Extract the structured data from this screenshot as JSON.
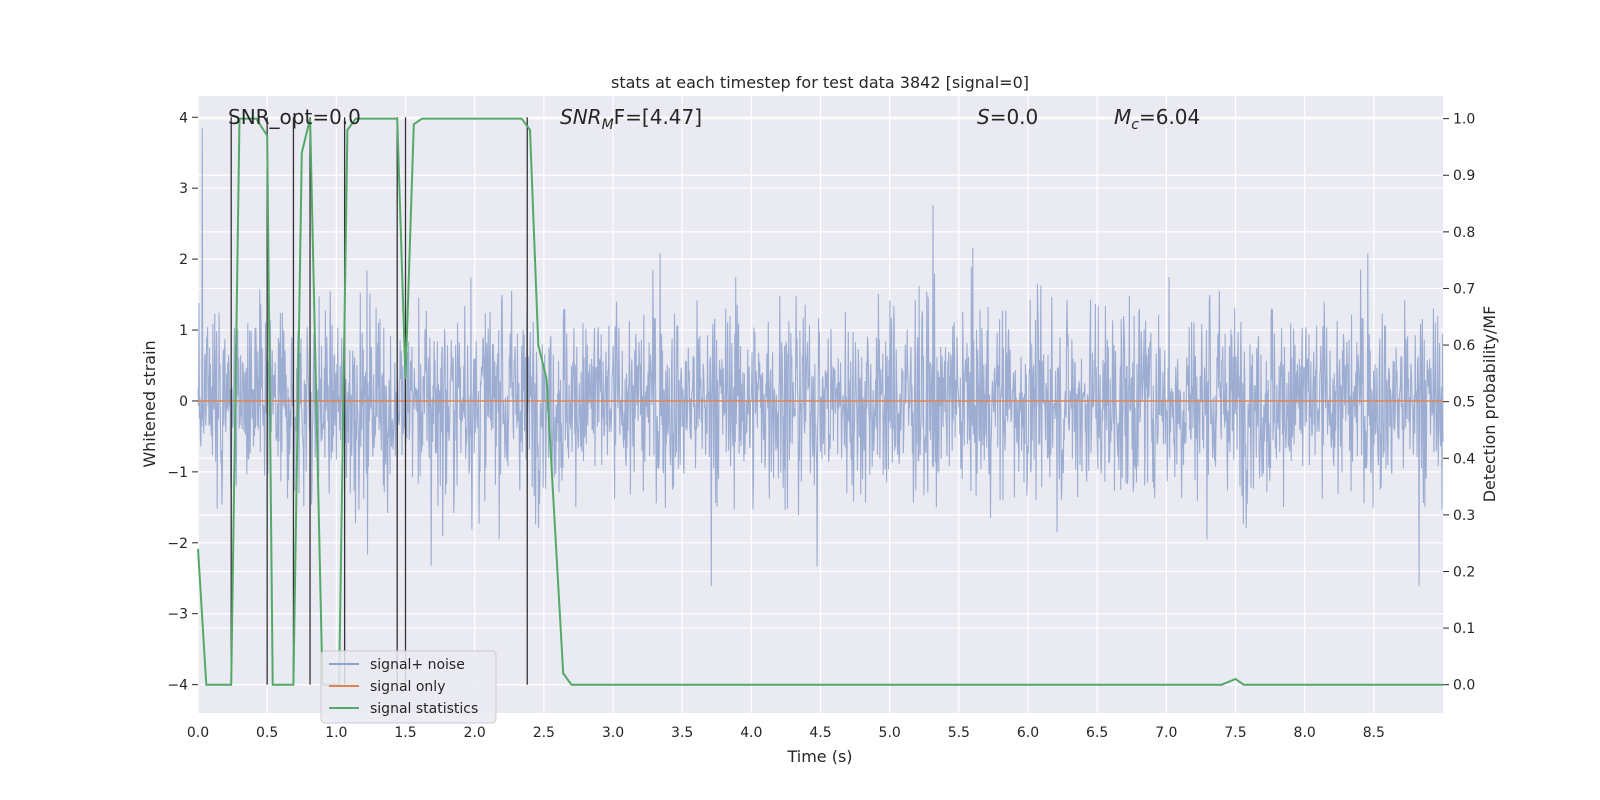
{
  "chart_data": {
    "type": "line",
    "title": "stats at each timestep for test data 3842 [signal=0]",
    "xlabel": "Time (s)",
    "ylabel_left": "Whitened strain",
    "ylabel_right": "Detection probability/MF",
    "xlim": [
      0.0,
      9.0
    ],
    "ylim_left": [
      -4.4,
      4.3
    ],
    "ylim_right": [
      -0.05,
      1.04
    ],
    "xticks": [
      "0.0",
      "0.5",
      "1.0",
      "1.5",
      "2.0",
      "2.5",
      "3.0",
      "3.5",
      "4.0",
      "4.5",
      "5.0",
      "5.5",
      "6.0",
      "6.5",
      "7.0",
      "7.5",
      "8.0",
      "8.5"
    ],
    "yticks_left": [
      "4",
      "3",
      "2",
      "1",
      "0",
      "−1",
      "−2",
      "−3",
      "−4"
    ],
    "yticks_right": [
      "1.0",
      "0.9",
      "0.8",
      "0.7",
      "0.6",
      "0.5",
      "0.4",
      "0.3",
      "0.2",
      "0.1",
      "0.0"
    ],
    "grid": true,
    "legend_position": "lower-left",
    "annotations": {
      "snr_opt": "SNR_opt=0.0",
      "snr_mf_main": "SNR",
      "snr_mf_sub": "M",
      "snr_mf_rest": "F=[4.47]",
      "s_main": "S",
      "s_rest": "=0.0",
      "mc_main": "M",
      "mc_sub": "c",
      "mc_rest": "=6.04"
    },
    "series": [
      {
        "name": "signal+ noise",
        "axis": "left",
        "color": "#8fa2cc",
        "note": "whitened strain noise, approx. zero-mean, amplitude up to ~±3"
      },
      {
        "name": "signal only",
        "axis": "left",
        "color": "#dd8452",
        "x": [
          0.0,
          9.0
        ],
        "values": [
          0.0,
          0.0
        ]
      },
      {
        "name": "signal statistics",
        "axis": "right",
        "color": "#55a868",
        "x": [
          0.0,
          0.06,
          0.24,
          0.3,
          0.42,
          0.5,
          0.54,
          0.6,
          0.69,
          0.75,
          0.81,
          0.9,
          1.02,
          1.08,
          1.14,
          1.2,
          1.44,
          1.5,
          1.56,
          1.62,
          2.34,
          2.4,
          2.46,
          2.52,
          2.64,
          2.7,
          7.4,
          7.5,
          7.56,
          9.0
        ],
        "values": [
          0.24,
          0.0,
          0.0,
          1.0,
          1.0,
          0.97,
          0.0,
          0.0,
          0.0,
          0.94,
          1.0,
          0.0,
          0.0,
          0.98,
          1.0,
          1.0,
          1.0,
          0.54,
          0.99,
          1.0,
          1.0,
          0.98,
          0.6,
          0.54,
          0.02,
          0.0,
          0.0,
          0.01,
          0.0,
          0.0
        ]
      }
    ],
    "vertical_markers": {
      "color": "#333333",
      "x": [
        0.24,
        0.5,
        0.69,
        0.81,
        1.06,
        1.44,
        1.5,
        2.38
      ]
    }
  }
}
